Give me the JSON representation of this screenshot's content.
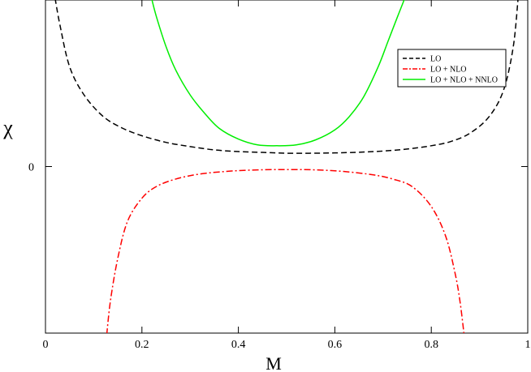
{
  "chart_data": {
    "type": "line",
    "title": "",
    "xlabel": "M",
    "ylabel": "χ",
    "xlim": [
      0,
      1
    ],
    "ylim": [
      -1,
      1
    ],
    "x_ticks": [
      {
        "value": 0,
        "label": "0"
      },
      {
        "value": 0.2,
        "label": "0.2"
      },
      {
        "value": 0.4,
        "label": "0.4"
      },
      {
        "value": 0.6,
        "label": "0.6"
      },
      {
        "value": 0.8,
        "label": "0.8"
      },
      {
        "value": 1,
        "label": "1"
      }
    ],
    "y_ticks": [
      {
        "value": 0,
        "label": "0"
      }
    ],
    "grid": false,
    "legend_position": "top-right",
    "series": [
      {
        "name": "LO",
        "color": "#000000",
        "style": "dashed",
        "x": [
          0.02,
          0.03,
          0.05,
          0.08,
          0.12,
          0.16,
          0.2,
          0.25,
          0.3,
          0.35,
          0.4,
          0.45,
          0.5,
          0.55,
          0.6,
          0.65,
          0.7,
          0.75,
          0.8,
          0.84,
          0.88,
          0.92,
          0.95,
          0.97,
          0.98
        ],
        "y": [
          1.01,
          0.85,
          0.6,
          0.43,
          0.3,
          0.23,
          0.185,
          0.145,
          0.12,
          0.1,
          0.09,
          0.085,
          0.08,
          0.08,
          0.082,
          0.086,
          0.093,
          0.105,
          0.125,
          0.15,
          0.2,
          0.3,
          0.46,
          0.72,
          1.01
        ]
      },
      {
        "name": "LO + NLO",
        "color": "#ff0000",
        "style": "dash-dot",
        "x": [
          0.127,
          0.135,
          0.15,
          0.17,
          0.2,
          0.23,
          0.27,
          0.32,
          0.38,
          0.44,
          0.5,
          0.56,
          0.62,
          0.68,
          0.72,
          0.76,
          0.8,
          0.83,
          0.85,
          0.86,
          0.868
        ],
        "y": [
          -1.01,
          -0.8,
          -0.55,
          -0.33,
          -0.19,
          -0.12,
          -0.075,
          -0.045,
          -0.028,
          -0.02,
          -0.018,
          -0.02,
          -0.03,
          -0.05,
          -0.075,
          -0.12,
          -0.24,
          -0.42,
          -0.65,
          -0.82,
          -1.01
        ]
      },
      {
        "name": "LO + NLO + NNLO",
        "color": "#00ee00",
        "style": "solid",
        "x": [
          0.22,
          0.23,
          0.25,
          0.27,
          0.3,
          0.33,
          0.36,
          0.4,
          0.44,
          0.48,
          0.52,
          0.56,
          0.6,
          0.63,
          0.66,
          0.69,
          0.71,
          0.73,
          0.745
        ],
        "y": [
          1.01,
          0.9,
          0.72,
          0.58,
          0.43,
          0.32,
          0.23,
          0.165,
          0.13,
          0.125,
          0.13,
          0.16,
          0.22,
          0.3,
          0.42,
          0.6,
          0.75,
          0.9,
          1.01
        ]
      }
    ]
  }
}
